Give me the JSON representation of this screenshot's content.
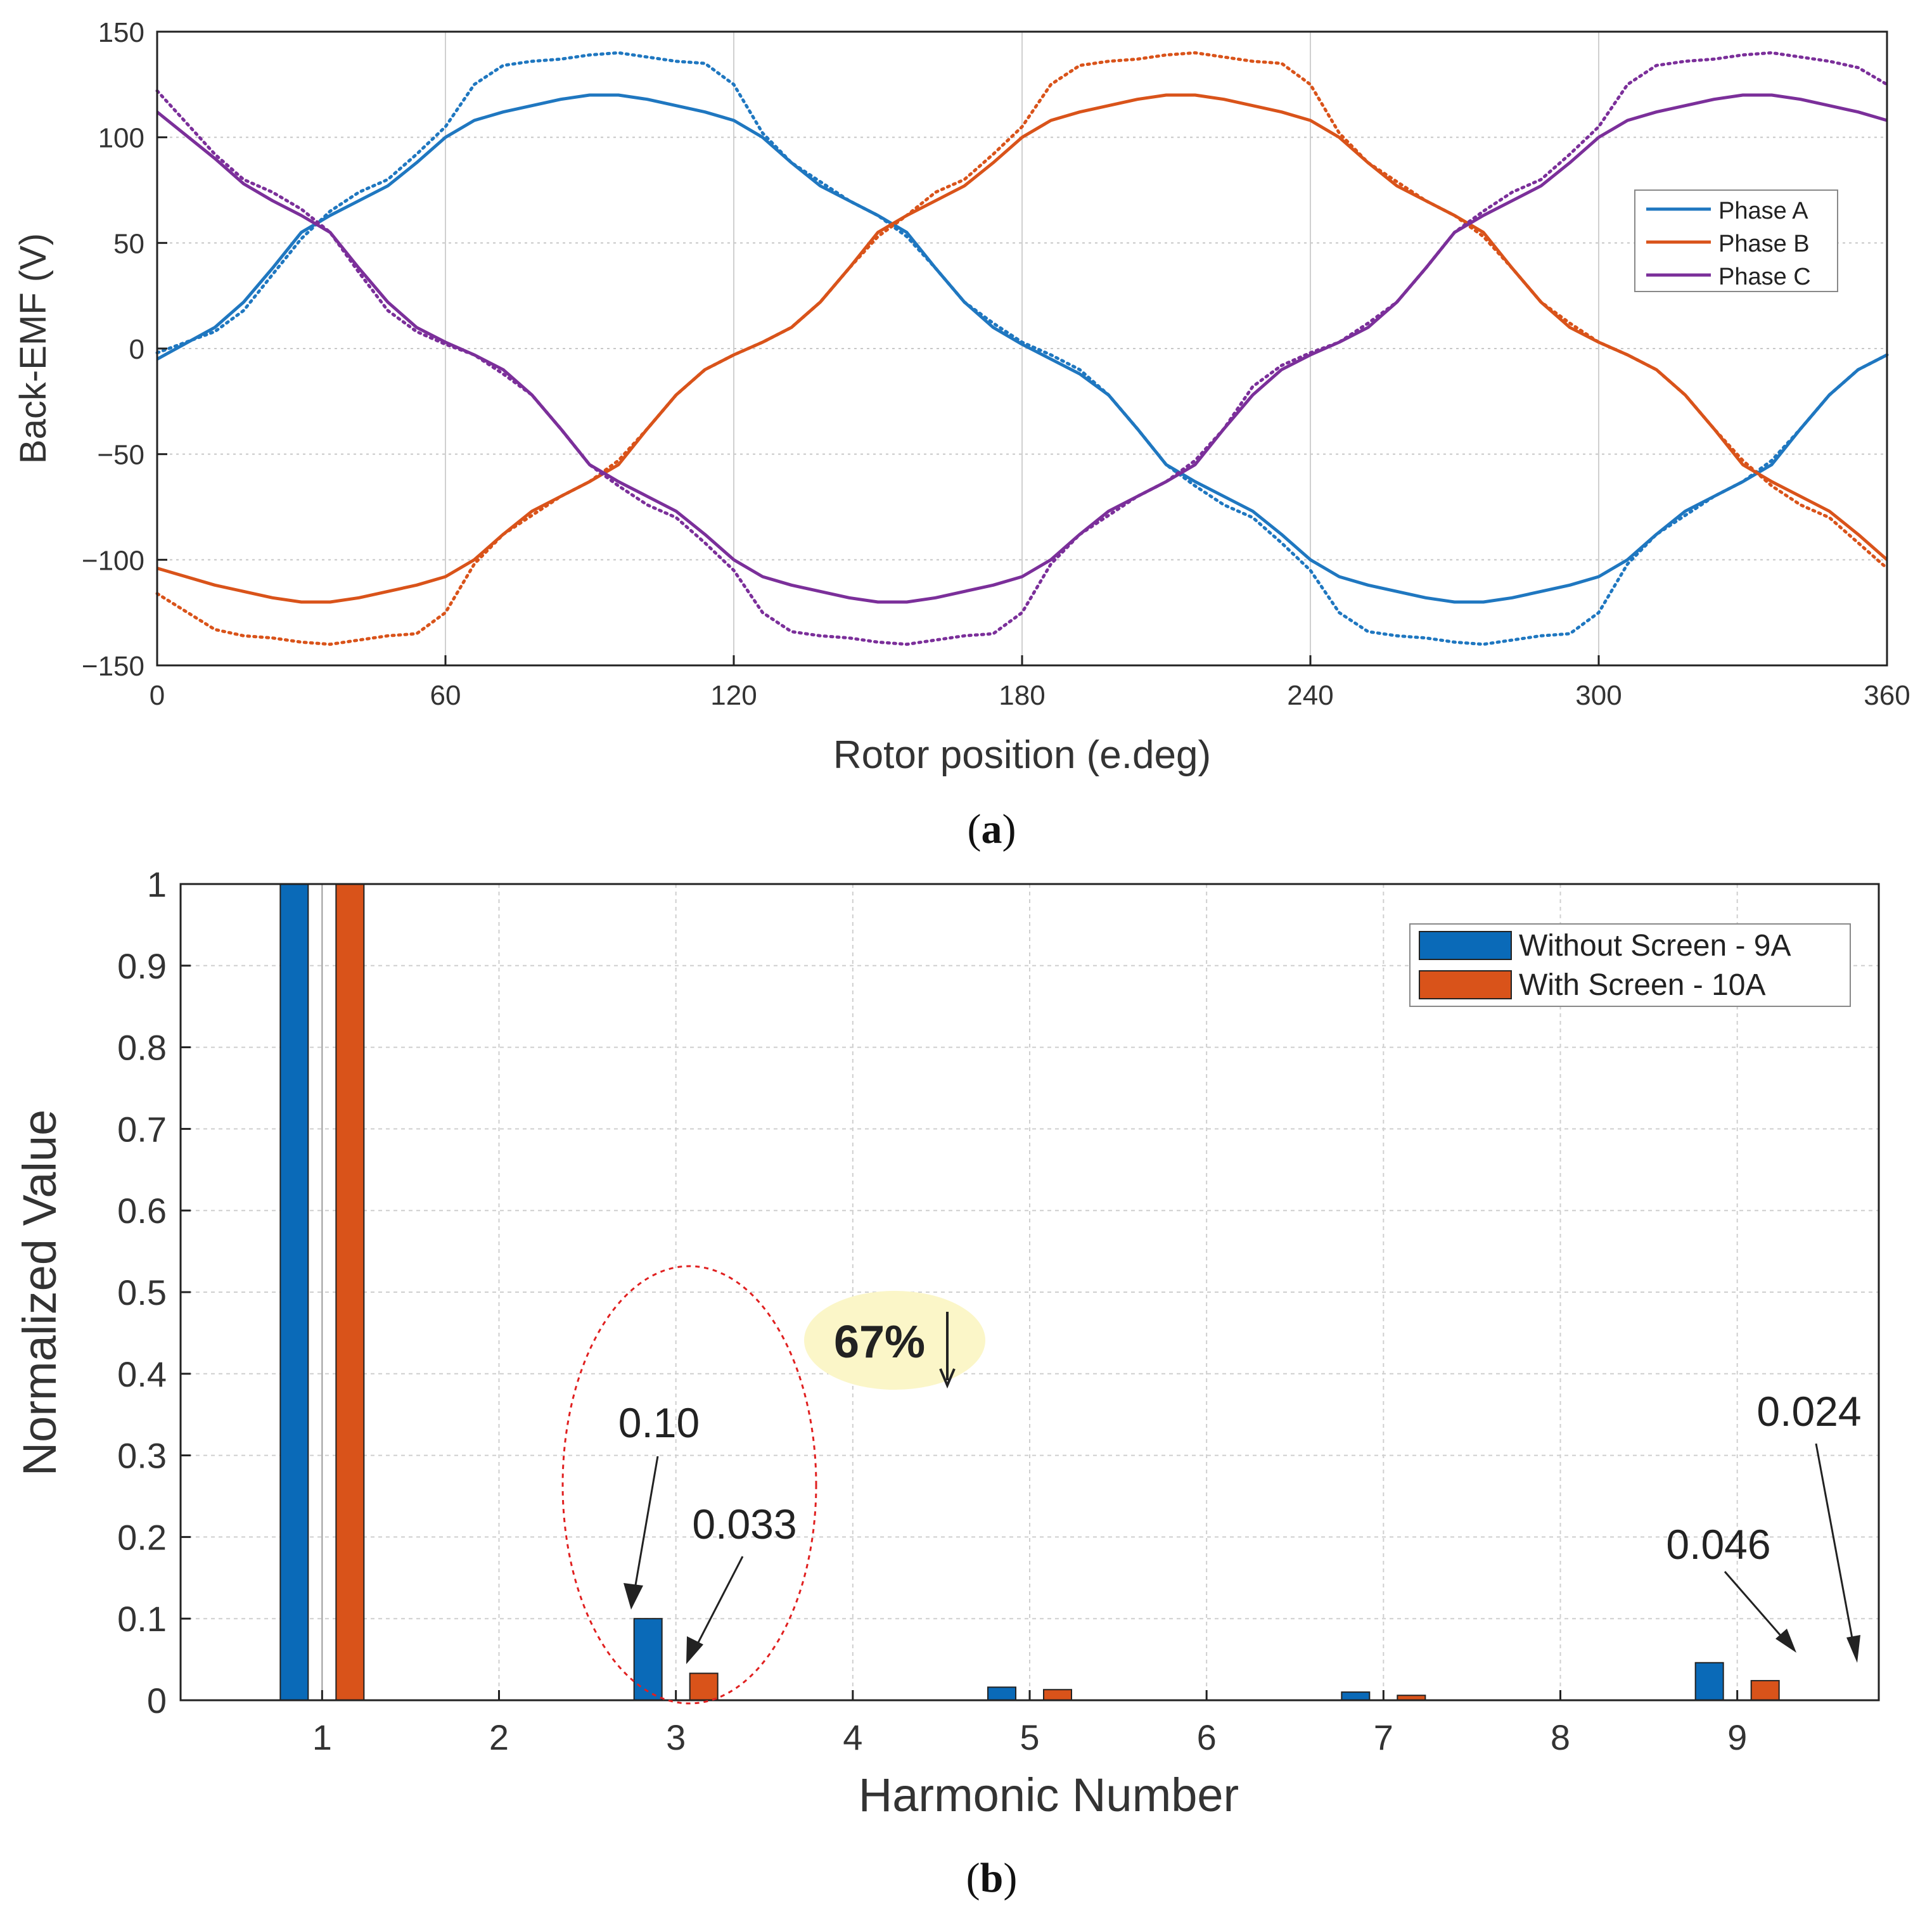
{
  "chart_data": [
    {
      "id": "a",
      "type": "line",
      "caption_open": "(",
      "caption_letter": "a",
      "caption_close": ")",
      "xlabel": "Rotor position (e.deg)",
      "ylabel": "Back-EMF (V)",
      "xlim": [
        0,
        360
      ],
      "ylim": [
        -150,
        150
      ],
      "xticks": [
        0,
        60,
        120,
        180,
        240,
        300,
        360
      ],
      "yticks": [
        -150,
        -100,
        -50,
        0,
        50,
        100,
        150
      ],
      "ytick_labels": [
        "−150",
        "−100",
        "−50",
        "0",
        "50",
        "100",
        "150"
      ],
      "legend": {
        "location": "right",
        "entries": [
          "Phase A",
          "Phase B",
          "Phase C"
        ]
      },
      "x": [
        0,
        12,
        18,
        24,
        30,
        36,
        42,
        48,
        54,
        60,
        66,
        72,
        78,
        84,
        90,
        96,
        102,
        108,
        114,
        120,
        126,
        132,
        138,
        144,
        150,
        156,
        162,
        168,
        174,
        180,
        186,
        192,
        198,
        204,
        210,
        216,
        222,
        228,
        234,
        240,
        246,
        252,
        258,
        264,
        270,
        276,
        282,
        288,
        294,
        300,
        306,
        312,
        318,
        324,
        330,
        336,
        342,
        348,
        354,
        360
      ],
      "series": [
        {
          "name": "Phase A",
          "color": "#1f77c0",
          "style": "solid",
          "values": [
            -5,
            10,
            22,
            38,
            55,
            63,
            70,
            77,
            88,
            100,
            108,
            112,
            115,
            118,
            120,
            120,
            118,
            115,
            112,
            108,
            100,
            88,
            77,
            70,
            63,
            55,
            38,
            22,
            10,
            2,
            -5,
            -12,
            -22,
            -38,
            -55,
            -63,
            -70,
            -77,
            -88,
            -100,
            -108,
            -112,
            -115,
            -118,
            -120,
            -120,
            -118,
            -115,
            -112,
            -108,
            -100,
            -88,
            -77,
            -70,
            -63,
            -55,
            -38,
            -22,
            -10,
            -3
          ]
        },
        {
          "name": "Phase A (dotted)",
          "color": "#1f77c0",
          "style": "dotted",
          "values": [
            -2,
            8,
            18,
            35,
            52,
            65,
            74,
            80,
            92,
            105,
            125,
            134,
            136,
            137,
            139,
            140,
            138,
            136,
            135,
            125,
            102,
            88,
            79,
            70,
            63,
            53,
            38,
            22,
            12,
            3,
            -3,
            -10,
            -22,
            -38,
            -55,
            -65,
            -74,
            -80,
            -92,
            -105,
            -125,
            -134,
            -136,
            -137,
            -139,
            -140,
            -138,
            -136,
            -135,
            -125,
            -102,
            -88,
            -79,
            -70,
            -63,
            -53,
            -38,
            -22,
            -10,
            -3
          ]
        },
        {
          "name": "Phase B",
          "color": "#d9531a",
          "style": "solid",
          "values": [
            -104,
            -112,
            -115,
            -118,
            -120,
            -120,
            -118,
            -115,
            -112,
            -108,
            -100,
            -88,
            -77,
            -70,
            -63,
            -55,
            -38,
            -22,
            -10,
            -3,
            3,
            10,
            22,
            38,
            55,
            63,
            70,
            77,
            88,
            100,
            108,
            112,
            115,
            118,
            120,
            120,
            118,
            115,
            112,
            108,
            100,
            88,
            77,
            70,
            63,
            55,
            38,
            22,
            10,
            3,
            -3,
            -10,
            -22,
            -38,
            -55,
            -63,
            -70,
            -77,
            -88,
            -100
          ]
        },
        {
          "name": "Phase B (dotted)",
          "color": "#d9531a",
          "style": "dotted",
          "values": [
            -116,
            -133,
            -136,
            -137,
            -139,
            -140,
            -138,
            -136,
            -135,
            -125,
            -102,
            -88,
            -79,
            -70,
            -63,
            -53,
            -38,
            -22,
            -10,
            -3,
            3,
            10,
            22,
            38,
            53,
            63,
            74,
            80,
            92,
            105,
            125,
            134,
            136,
            137,
            139,
            140,
            138,
            136,
            135,
            125,
            102,
            88,
            79,
            70,
            63,
            53,
            38,
            22,
            12,
            3,
            -3,
            -10,
            -22,
            -38,
            -53,
            -65,
            -74,
            -80,
            -92,
            -104
          ]
        },
        {
          "name": "Phase C",
          "color": "#7b2f9a",
          "style": "solid",
          "values": [
            112,
            90,
            78,
            70,
            63,
            55,
            38,
            22,
            10,
            3,
            -3,
            -10,
            -22,
            -38,
            -55,
            -63,
            -70,
            -77,
            -88,
            -100,
            -108,
            -112,
            -115,
            -118,
            -120,
            -120,
            -118,
            -115,
            -112,
            -108,
            -100,
            -88,
            -77,
            -70,
            -63,
            -55,
            -38,
            -22,
            -10,
            -3,
            3,
            10,
            22,
            38,
            55,
            63,
            70,
            77,
            88,
            100,
            108,
            112,
            115,
            118,
            120,
            120,
            118,
            115,
            112,
            108
          ]
        },
        {
          "name": "Phase C (dotted)",
          "color": "#7b2f9a",
          "style": "dotted",
          "values": [
            122,
            92,
            80,
            74,
            66,
            55,
            36,
            18,
            8,
            2,
            -3,
            -12,
            -22,
            -38,
            -55,
            -65,
            -74,
            -80,
            -92,
            -105,
            -125,
            -134,
            -136,
            -137,
            -139,
            -140,
            -138,
            -136,
            -135,
            -125,
            -102,
            -88,
            -79,
            -70,
            -63,
            -53,
            -38,
            -18,
            -8,
            -2,
            3,
            12,
            22,
            38,
            55,
            65,
            74,
            80,
            92,
            105,
            125,
            134,
            136,
            137,
            139,
            140,
            138,
            136,
            133,
            125
          ]
        }
      ]
    },
    {
      "id": "b",
      "type": "bar",
      "caption_open": "(",
      "caption_letter": "b",
      "caption_close": ")",
      "xlabel": "Harmonic Number",
      "ylabel": "Normalized Value",
      "categories": [
        "1",
        "2",
        "3",
        "4",
        "5",
        "6",
        "7",
        "8",
        "9"
      ],
      "ylim": [
        0,
        1
      ],
      "yticks": [
        0,
        0.1,
        0.2,
        0.3,
        0.4,
        0.5,
        0.6,
        0.7,
        0.8,
        0.9,
        1
      ],
      "ytick_labels": [
        "0",
        "0.1",
        "0.2",
        "0.3",
        "0.4",
        "0.5",
        "0.6",
        "0.7",
        "0.8",
        "0.9",
        "1"
      ],
      "legend": {
        "location": "top-right",
        "entries": [
          "Without Screen - 9A",
          "With Screen - 10A"
        ]
      },
      "series": [
        {
          "name": "Without Screen - 9A",
          "color": "#0a6ab8",
          "values": [
            1.0,
            0.0,
            0.1,
            0.0,
            0.016,
            0.0,
            0.01,
            0.0,
            0.046
          ]
        },
        {
          "name": "With Screen - 10A",
          "color": "#d9531a",
          "values": [
            1.0,
            0.0,
            0.033,
            0.0,
            0.013,
            0.0,
            0.006,
            0.0,
            0.024
          ]
        }
      ],
      "annotations": {
        "label_h3_without": "0.10",
        "label_h3_with": "0.033",
        "label_h9_without": "0.046",
        "label_h9_with": "0.024",
        "reduction": "67%"
      }
    }
  ]
}
